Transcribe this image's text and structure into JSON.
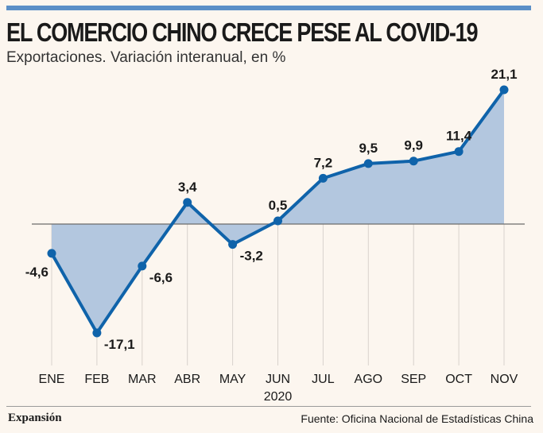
{
  "header": {
    "title": "EL COMERCIO CHINO CRECE PESE AL COVID-19",
    "subtitle": "Exportaciones. Variación interanual, en %"
  },
  "footer": {
    "brand": "Expansión",
    "source": "Fuente: Oficina Nacional de Estadísticas China"
  },
  "colors": {
    "line": "#0f63aa",
    "area": "#b3c7df",
    "accent_bar": "#5b8fc7",
    "background": "#fcf6ef"
  },
  "chart_data": {
    "type": "area",
    "title": "EL COMERCIO CHINO CRECE PESE AL COVID-19",
    "subtitle": "Exportaciones. Variación interanual, en %",
    "categories": [
      "ENE",
      "FEB",
      "MAR",
      "ABR",
      "MAY",
      "JUN",
      "JUL",
      "AGO",
      "SEP",
      "OCT",
      "NOV"
    ],
    "values": [
      -4.6,
      -17.1,
      -6.6,
      3.4,
      -3.2,
      0.5,
      7.2,
      9.5,
      9.9,
      11.4,
      21.1
    ],
    "value_labels": [
      "-4,6",
      "-17,1",
      "-6,6",
      "3,4",
      "-3,2",
      "0,5",
      "7,2",
      "9,5",
      "9,9",
      "11,4",
      "21,1"
    ],
    "label_position": [
      "left",
      "below-right",
      "below-right",
      "above",
      "below-right",
      "above",
      "above",
      "above",
      "above",
      "above",
      "above"
    ],
    "xlabel": "2020",
    "ylabel": "",
    "ylim": [
      -17.1,
      21.1
    ],
    "grid": "vertical"
  }
}
